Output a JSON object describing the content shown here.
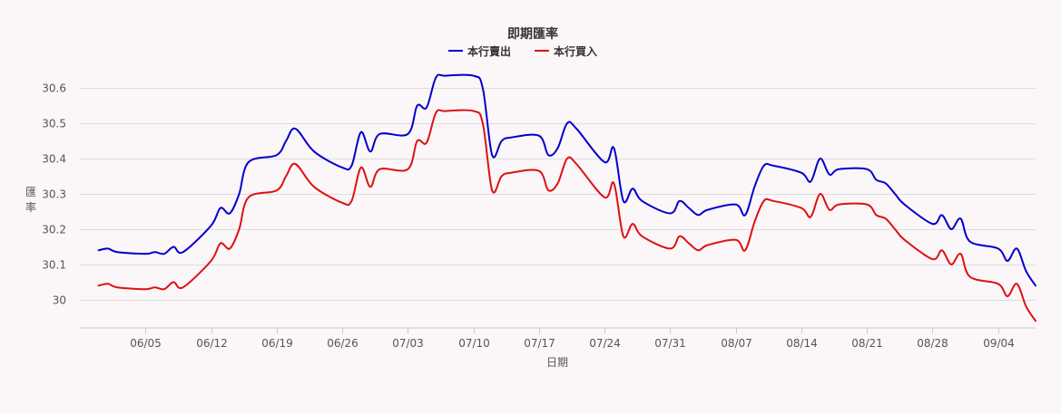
{
  "chart_data": {
    "type": "line",
    "title": "即期匯率",
    "xlabel": "日期",
    "ylabel": "匯率",
    "ylim": [
      29.92,
      30.67
    ],
    "yticks": [
      30,
      30.1,
      30.2,
      30.3,
      30.4,
      30.5,
      30.6
    ],
    "ytick_labels": [
      "30",
      "30.1",
      "30.2",
      "30.3",
      "30.4",
      "30.5",
      "30.6"
    ],
    "xrange": [
      "2023-05-29",
      "2023-09-08"
    ],
    "xticks": [
      "2023-06-05",
      "2023-06-12",
      "2023-06-19",
      "2023-06-26",
      "2023-07-03",
      "2023-07-10",
      "2023-07-17",
      "2023-07-24",
      "2023-07-31",
      "2023-08-07",
      "2023-08-14",
      "2023-08-21",
      "2023-08-28",
      "2023-09-04"
    ],
    "xtick_labels": [
      "06/05",
      "06/12",
      "06/19",
      "06/26",
      "07/03",
      "07/10",
      "07/17",
      "07/24",
      "07/31",
      "08/07",
      "08/14",
      "08/21",
      "08/28",
      "09/04"
    ],
    "grid": true,
    "legend_position": "top",
    "series": [
      {
        "name": "本行賣出",
        "color": "#0000cc",
        "x": [
          "2023-05-31",
          "2023-06-01",
          "2023-06-02",
          "2023-06-05",
          "2023-06-06",
          "2023-06-07",
          "2023-06-08",
          "2023-06-09",
          "2023-06-12",
          "2023-06-13",
          "2023-06-14",
          "2023-06-15",
          "2023-06-16",
          "2023-06-19",
          "2023-06-20",
          "2023-06-21",
          "2023-06-23",
          "2023-06-26",
          "2023-06-27",
          "2023-06-28",
          "2023-06-29",
          "2023-06-30",
          "2023-07-03",
          "2023-07-04",
          "2023-07-05",
          "2023-07-06",
          "2023-07-07",
          "2023-07-10",
          "2023-07-11",
          "2023-07-12",
          "2023-07-13",
          "2023-07-14",
          "2023-07-17",
          "2023-07-18",
          "2023-07-19",
          "2023-07-20",
          "2023-07-21",
          "2023-07-24",
          "2023-07-25",
          "2023-07-26",
          "2023-07-27",
          "2023-07-28",
          "2023-07-31",
          "2023-08-01",
          "2023-08-02",
          "2023-08-03",
          "2023-08-04",
          "2023-08-07",
          "2023-08-08",
          "2023-08-09",
          "2023-08-10",
          "2023-08-11",
          "2023-08-14",
          "2023-08-15",
          "2023-08-16",
          "2023-08-17",
          "2023-08-18",
          "2023-08-21",
          "2023-08-22",
          "2023-08-23",
          "2023-08-24",
          "2023-08-25",
          "2023-08-28",
          "2023-08-29",
          "2023-08-30",
          "2023-08-31",
          "2023-09-01",
          "2023-09-04",
          "2023-09-05",
          "2023-09-06",
          "2023-09-07",
          "2023-09-08"
        ],
        "values": [
          30.14,
          30.145,
          30.135,
          30.13,
          30.135,
          30.13,
          30.15,
          30.135,
          30.21,
          30.26,
          30.245,
          30.3,
          30.39,
          30.41,
          30.45,
          30.485,
          30.42,
          30.375,
          30.38,
          30.475,
          30.42,
          30.47,
          30.47,
          30.55,
          30.545,
          30.63,
          30.635,
          30.635,
          30.6,
          30.41,
          30.45,
          30.46,
          30.465,
          30.41,
          30.43,
          30.5,
          30.485,
          30.39,
          30.43,
          30.28,
          30.315,
          30.28,
          30.245,
          30.28,
          30.26,
          30.24,
          30.255,
          30.27,
          30.24,
          30.32,
          30.38,
          30.38,
          30.36,
          30.335,
          30.4,
          30.355,
          30.37,
          30.37,
          30.34,
          30.33,
          30.3,
          30.27,
          30.215,
          30.24,
          30.2,
          30.23,
          30.165,
          30.145,
          30.11,
          30.145,
          30.08,
          30.04
        ]
      },
      {
        "name": "本行買入",
        "color": "#dd1111",
        "x": [
          "2023-05-31",
          "2023-06-01",
          "2023-06-02",
          "2023-06-05",
          "2023-06-06",
          "2023-06-07",
          "2023-06-08",
          "2023-06-09",
          "2023-06-12",
          "2023-06-13",
          "2023-06-14",
          "2023-06-15",
          "2023-06-16",
          "2023-06-19",
          "2023-06-20",
          "2023-06-21",
          "2023-06-23",
          "2023-06-26",
          "2023-06-27",
          "2023-06-28",
          "2023-06-29",
          "2023-06-30",
          "2023-07-03",
          "2023-07-04",
          "2023-07-05",
          "2023-07-06",
          "2023-07-07",
          "2023-07-10",
          "2023-07-11",
          "2023-07-12",
          "2023-07-13",
          "2023-07-14",
          "2023-07-17",
          "2023-07-18",
          "2023-07-19",
          "2023-07-20",
          "2023-07-21",
          "2023-07-24",
          "2023-07-25",
          "2023-07-26",
          "2023-07-27",
          "2023-07-28",
          "2023-07-31",
          "2023-08-01",
          "2023-08-02",
          "2023-08-03",
          "2023-08-04",
          "2023-08-07",
          "2023-08-08",
          "2023-08-09",
          "2023-08-10",
          "2023-08-11",
          "2023-08-14",
          "2023-08-15",
          "2023-08-16",
          "2023-08-17",
          "2023-08-18",
          "2023-08-21",
          "2023-08-22",
          "2023-08-23",
          "2023-08-24",
          "2023-08-25",
          "2023-08-28",
          "2023-08-29",
          "2023-08-30",
          "2023-08-31",
          "2023-09-01",
          "2023-09-04",
          "2023-09-05",
          "2023-09-06",
          "2023-09-07",
          "2023-09-08"
        ],
        "values": [
          30.04,
          30.045,
          30.035,
          30.03,
          30.035,
          30.03,
          30.05,
          30.035,
          30.11,
          30.16,
          30.145,
          30.2,
          30.29,
          30.31,
          30.35,
          30.385,
          30.32,
          30.275,
          30.28,
          30.375,
          30.32,
          30.37,
          30.37,
          30.45,
          30.445,
          30.53,
          30.535,
          30.535,
          30.5,
          30.31,
          30.35,
          30.36,
          30.365,
          30.31,
          30.33,
          30.4,
          30.385,
          30.29,
          30.33,
          30.18,
          30.215,
          30.18,
          30.145,
          30.18,
          30.16,
          30.14,
          30.155,
          30.17,
          30.14,
          30.22,
          30.28,
          30.28,
          30.26,
          30.235,
          30.3,
          30.255,
          30.27,
          30.27,
          30.24,
          30.23,
          30.2,
          30.17,
          30.115,
          30.14,
          30.1,
          30.13,
          30.065,
          30.045,
          30.01,
          30.045,
          29.98,
          29.94
        ]
      }
    ]
  }
}
